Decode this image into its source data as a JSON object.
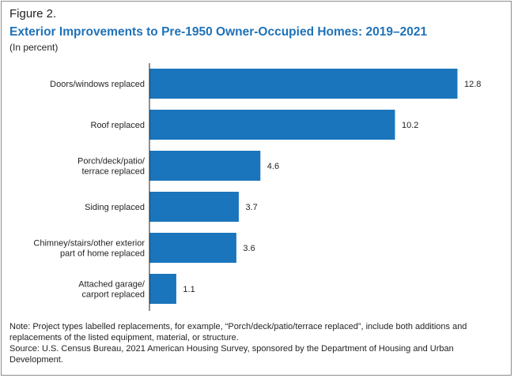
{
  "figure": {
    "label": "Figure 2.",
    "title": "Exterior Improvements to Pre-1950 Owner-Occupied Homes: 2019–2021",
    "subtitle": "(In percent)",
    "note": "Note: Project types labelled replacements, for example, “Porch/deck/patio/terrace replaced”, include both additions and replacements of the listed equipment, material, or structure.",
    "source": "Source: U.S. Census Bureau, 2021 American Housing Survey, sponsored by the Department of Housing and Urban Development."
  },
  "chart_data": {
    "type": "bar",
    "orientation": "horizontal",
    "categories": [
      [
        "Doors/windows replaced"
      ],
      [
        "Roof replaced"
      ],
      [
        "Porch/deck/patio/",
        "terrace replaced"
      ],
      [
        "Siding replaced"
      ],
      [
        "Chimney/stairs/other exterior",
        "part of home replaced"
      ],
      [
        "Attached garage/",
        "carport replaced"
      ]
    ],
    "values": [
      12.8,
      10.2,
      4.6,
      3.7,
      3.6,
      1.1
    ],
    "value_labels": [
      "12.8",
      "10.2",
      "4.6",
      "3.7",
      "3.6",
      "1.1"
    ],
    "xlim": [
      0,
      12.8
    ],
    "bar_color": "#1a75bc",
    "axis_color": "#231f20",
    "grid": false,
    "legend": "none"
  }
}
